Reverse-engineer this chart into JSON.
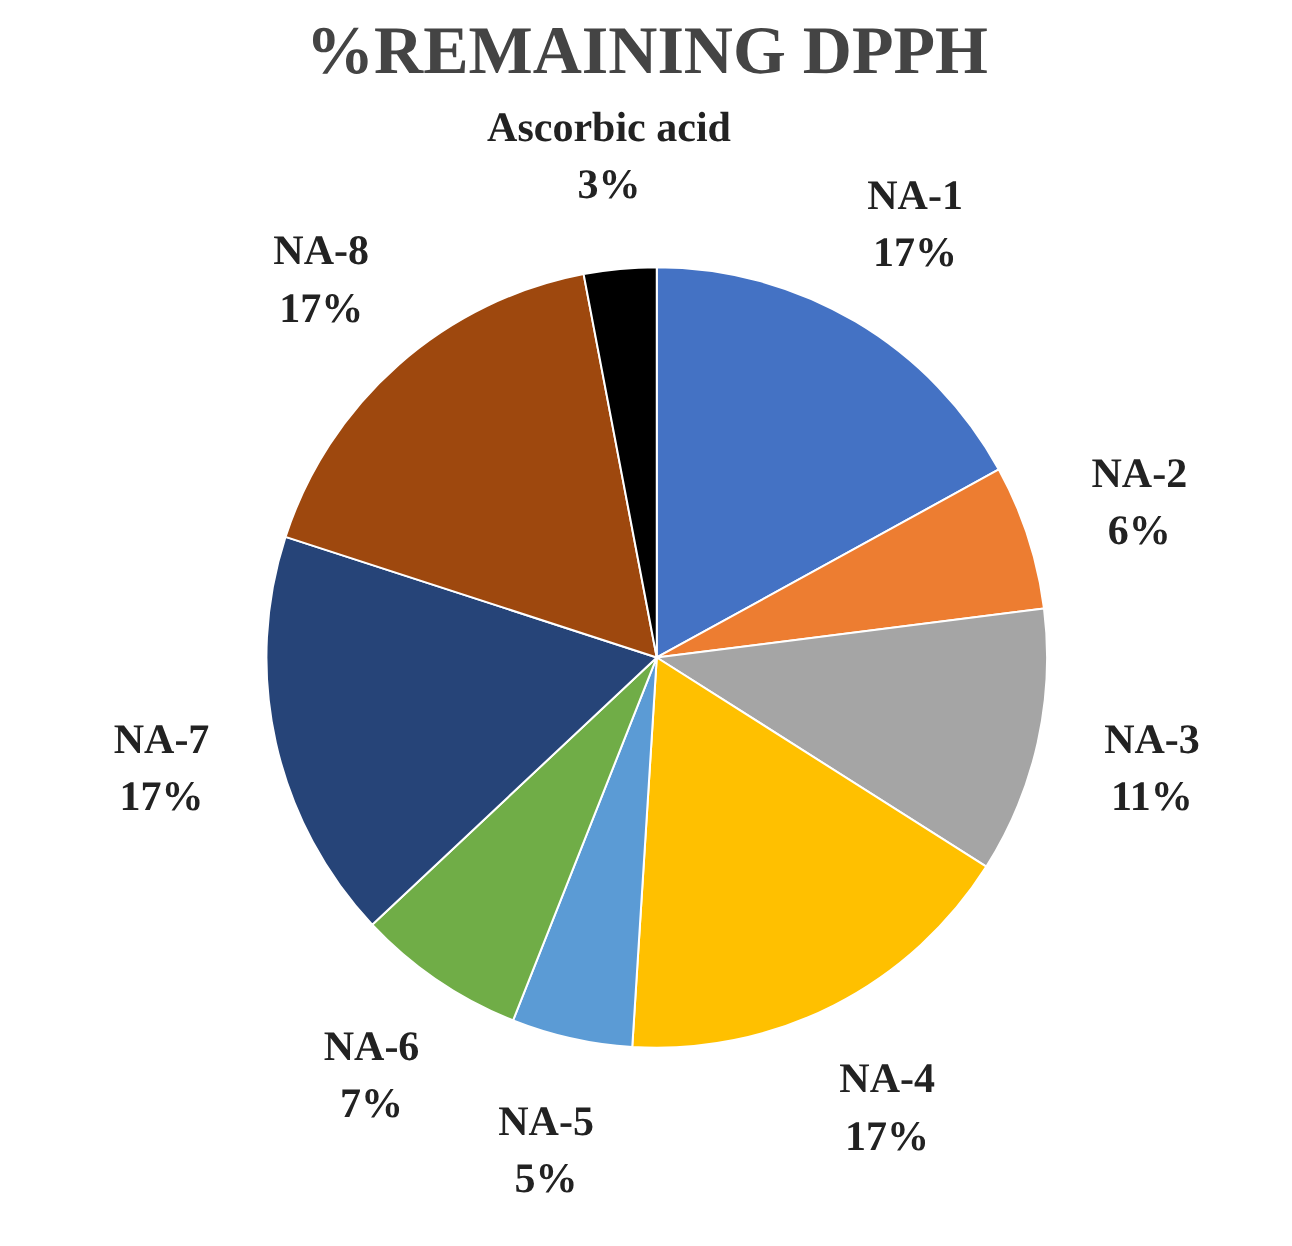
{
  "chart_data": {
    "type": "pie",
    "title": "%REMAINING DPPH",
    "categories": [
      "NA-1",
      "NA-2",
      "NA-3",
      "NA-4",
      "NA-5",
      "NA-6",
      "NA-7",
      "NA-8",
      "Ascorbic acid"
    ],
    "values": [
      17,
      6,
      11,
      17,
      5,
      7,
      17,
      17,
      3
    ],
    "value_labels": [
      "17%",
      "6%",
      "11%",
      "17%",
      "5%",
      "7%",
      "17%",
      "17%",
      "3%"
    ],
    "colors": [
      "#4472c4",
      "#ed7d31",
      "#a5a5a5",
      "#ffc000",
      "#5b9bd5",
      "#70ad47",
      "#264478",
      "#9e480e",
      "#000000"
    ]
  }
}
